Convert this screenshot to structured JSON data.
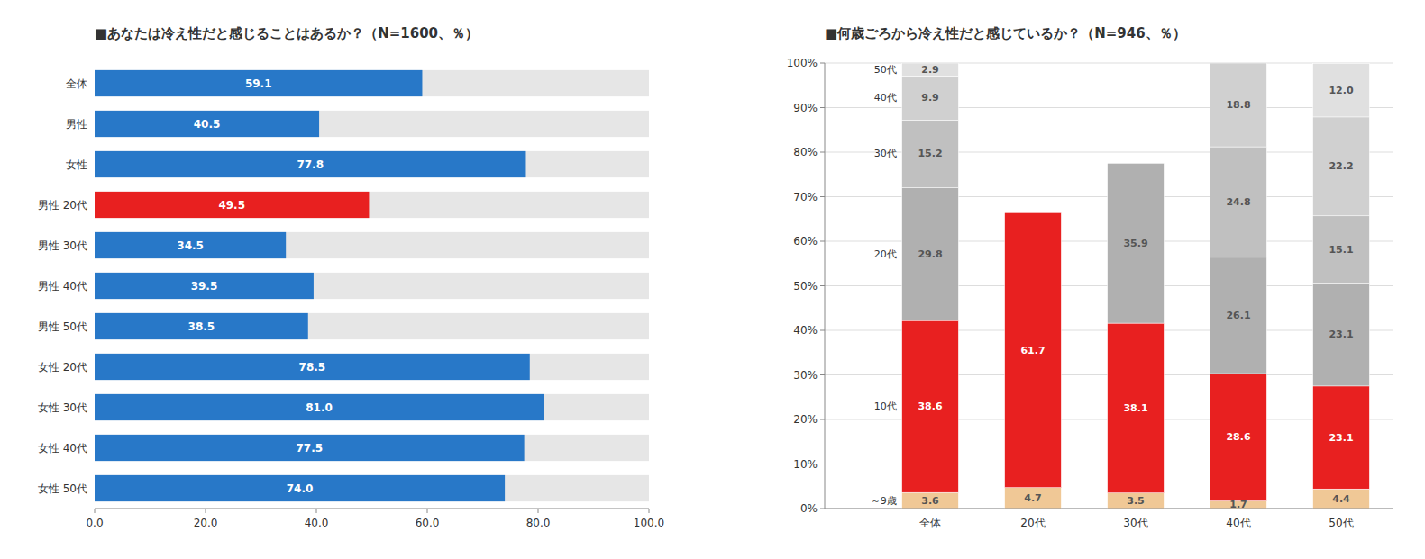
{
  "chart_data": [
    {
      "type": "bar",
      "orientation": "horizontal",
      "title": "■あなたは冷え性だと感じることはあるか？（N=1600、％）",
      "categories": [
        "全体",
        "男性",
        "女性",
        "男性 20代",
        "男性 30代",
        "男性 40代",
        "男性 50代",
        "女性 20代",
        "女性 30代",
        "女性 40代",
        "女性 50代"
      ],
      "values": [
        59.1,
        40.5,
        77.8,
        49.5,
        34.5,
        39.5,
        38.5,
        78.5,
        81.0,
        77.5,
        74.0
      ],
      "value_labels": [
        "59.1",
        "40.5",
        "77.8",
        "49.5",
        "34.5",
        "39.5",
        "38.5",
        "78.5",
        "81.0",
        "77.5",
        "74.0"
      ],
      "colors": [
        "#2878c8",
        "#2878c8",
        "#2878c8",
        "#e82020",
        "#2878c8",
        "#2878c8",
        "#2878c8",
        "#2878c8",
        "#2878c8",
        "#2878c8",
        "#2878c8"
      ],
      "xlim": [
        0,
        100
      ],
      "xticks": [
        {
          "value": 0,
          "label": "0.0"
        },
        {
          "value": 20,
          "label": "20.0"
        },
        {
          "value": 40,
          "label": "40.0"
        },
        {
          "value": 60,
          "label": "60.0"
        },
        {
          "value": 80,
          "label": "80.0"
        },
        {
          "value": 100,
          "label": "100.0"
        }
      ],
      "grid": false,
      "data_labels": true
    },
    {
      "type": "bar",
      "stacked": true,
      "title": "■何歳ごろから冷え性だと感じているか？（N=946、％）",
      "categories": [
        "全体",
        "20代",
        "30代",
        "40代",
        "50代"
      ],
      "series": [
        {
          "name": "～9歳",
          "color": "#f0c896",
          "values": [
            3.6,
            4.7,
            3.5,
            1.7,
            4.4
          ],
          "value_labels": [
            "3.6",
            "4.7",
            "3.5",
            "1.7",
            "4.4"
          ]
        },
        {
          "name": "10代",
          "color": "#e82020",
          "values": [
            38.6,
            61.7,
            38.1,
            28.6,
            23.1
          ],
          "value_labels": [
            "38.6",
            "61.7",
            "38.1",
            "28.6",
            "23.1"
          ]
        },
        {
          "name": "20代",
          "color": "#b0b0b0",
          "values": [
            29.8,
            0.0,
            35.9,
            26.1,
            23.1
          ],
          "value_labels": [
            "29.8",
            null,
            "35.9",
            "26.1",
            "23.1"
          ]
        },
        {
          "name": "30代",
          "color": "#c0c0c0",
          "values": [
            15.2,
            0.0,
            0.0,
            24.8,
            15.1
          ],
          "value_labels": [
            "15.2",
            null,
            null,
            "24.8",
            "15.1"
          ]
        },
        {
          "name": "40代",
          "color": "#d0d0d0",
          "values": [
            9.9,
            0.0,
            0.0,
            18.8,
            22.2
          ],
          "value_labels": [
            "9.9",
            null,
            null,
            "18.8",
            "22.2"
          ]
        },
        {
          "name": "50代",
          "color": "#e0e0e0",
          "values": [
            2.9,
            0.0,
            0.0,
            0.0,
            12.0
          ],
          "value_labels": [
            "2.9",
            null,
            null,
            null,
            "12.0"
          ]
        }
      ],
      "ylim": [
        0,
        100
      ],
      "yticks": [
        {
          "value": 0,
          "label": "0%"
        },
        {
          "value": 10,
          "label": "10%"
        },
        {
          "value": 20,
          "label": "20%"
        },
        {
          "value": 30,
          "label": "30%"
        },
        {
          "value": 40,
          "label": "40%"
        },
        {
          "value": 50,
          "label": "50%"
        },
        {
          "value": 60,
          "label": "60%"
        },
        {
          "value": 70,
          "label": "70%"
        },
        {
          "value": 80,
          "label": "80%"
        },
        {
          "value": 90,
          "label": "90%"
        },
        {
          "value": 100,
          "label": "100%"
        }
      ],
      "grid": true,
      "data_labels": true
    }
  ]
}
